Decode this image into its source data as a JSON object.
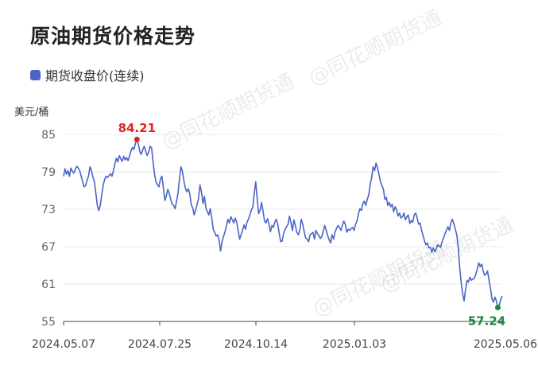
{
  "chart_data": {
    "type": "line",
    "title": "原油期货价格走势",
    "ylabel": "美元/桶",
    "xlabel": "",
    "ylim": [
      55,
      85
    ],
    "yticks": [
      55,
      61,
      67,
      73,
      79,
      85
    ],
    "xticks": [
      "2024.05.07",
      "2024.07.25",
      "2024.10.14",
      "2025.01.03",
      "2025.05.06"
    ],
    "grid": "horizontal",
    "legend": "top-left",
    "series": [
      {
        "name": "期货收盘价(连续)",
        "color": "#4a64c8",
        "values": [
          78.3,
          79.5,
          78.6,
          79.2,
          78.3,
          79.6,
          79.1,
          78.8,
          79.4,
          79.9,
          79.6,
          79.2,
          78.3,
          77.4,
          76.6,
          76.8,
          77.6,
          78.3,
          79.8,
          79.2,
          78.2,
          77.4,
          75.6,
          73.6,
          72.8,
          73.6,
          75.3,
          76.8,
          77.8,
          78.3,
          78.1,
          78.4,
          78.7,
          78.3,
          79.2,
          80.3,
          81.2,
          80.6,
          81.6,
          81.1,
          80.7,
          81.5,
          80.9,
          81.3,
          80.8,
          81.6,
          82.4,
          82.9,
          82.6,
          83.6,
          84.21,
          83.4,
          82.2,
          81.8,
          82.6,
          83.1,
          82.3,
          81.6,
          82.2,
          83.1,
          82.8,
          80.6,
          78.6,
          77.4,
          76.9,
          76.6,
          77.8,
          78.3,
          76.6,
          74.4,
          75.1,
          76.2,
          75.6,
          74.6,
          73.8,
          73.6,
          73.1,
          74.3,
          75.6,
          77.8,
          79.8,
          79.1,
          77.6,
          76.4,
          75.8,
          76.3,
          75.5,
          73.8,
          73.2,
          72.1,
          72.9,
          73.8,
          74.7,
          76.9,
          75.8,
          73.9,
          75.1,
          73.2,
          72.6,
          72.1,
          73.1,
          71.6,
          69.8,
          69.3,
          68.7,
          68.9,
          68.1,
          66.3,
          67.8,
          68.6,
          69.4,
          70.3,
          71.4,
          70.8,
          71.8,
          71.3,
          70.8,
          71.6,
          70.9,
          69.6,
          68.2,
          68.9,
          69.6,
          70.5,
          69.8,
          70.9,
          71.4,
          72.1,
          72.9,
          73.4,
          75.6,
          77.4,
          74.6,
          72.3,
          72.9,
          74.1,
          72.6,
          71.1,
          70.8,
          71.5,
          70.6,
          69.4,
          70.4,
          70.1,
          70.9,
          71.4,
          70.6,
          69.1,
          67.8,
          67.9,
          69.1,
          69.8,
          70.2,
          70.6,
          71.9,
          70.8,
          69.6,
          71.3,
          70.4,
          69.3,
          68.9,
          69.6,
          71.4,
          70.6,
          69.4,
          68.4,
          68.2,
          67.8,
          68.9,
          69.1,
          69.3,
          68.2,
          69.6,
          69.1,
          68.8,
          68.3,
          68.6,
          69.5,
          70.4,
          69.6,
          68.8,
          68.1,
          67.6,
          68.9,
          68.2,
          69.3,
          69.9,
          70.4,
          70.1,
          69.6,
          70.4,
          71.1,
          70.6,
          69.3,
          69.8,
          69.6,
          69.9,
          70.1,
          69.6,
          70.6,
          71.1,
          72.3,
          73.1,
          72.8,
          73.9,
          74.3,
          73.6,
          74.6,
          75.3,
          76.9,
          78.1,
          79.8,
          79.2,
          80.4,
          79.6,
          78.6,
          77.4,
          76.8,
          76.2,
          74.6,
          74.9,
          73.6,
          74.1,
          73.4,
          73.8,
          72.6,
          73.4,
          72.9,
          71.9,
          72.4,
          71.6,
          71.8,
          72.4,
          71.3,
          71.8,
          72.1,
          70.7,
          71.2,
          70.9,
          72.1,
          72.4,
          71.6,
          70.6,
          70.8,
          69.6,
          68.8,
          67.9,
          67.3,
          67.6,
          66.8,
          66.9,
          66.1,
          66.8,
          66.2,
          66.6,
          67.3,
          67.1,
          66.9,
          67.8,
          68.4,
          69.1,
          69.6,
          70.2,
          69.6,
          70.8,
          71.4,
          70.7,
          69.8,
          68.9,
          66.9,
          63.6,
          61.3,
          59.4,
          58.3,
          60.1,
          61.6,
          61.3,
          62.1,
          61.6,
          61.8,
          61.9,
          62.6,
          63.4,
          64.4,
          63.8,
          64.2,
          63.1,
          62.4,
          62.6,
          63.1,
          61.6,
          60.3,
          58.6,
          58.1,
          58.9,
          58.3,
          57.24,
          57.6,
          58.6,
          59.1
        ]
      }
    ],
    "annotations": [
      {
        "label": "84.21",
        "value": 84.21,
        "color": "#e4241c"
      },
      {
        "label": "57.24",
        "value": 57.24,
        "color": "#1a8a3a"
      }
    ]
  },
  "watermark": "@同花顺期货通"
}
